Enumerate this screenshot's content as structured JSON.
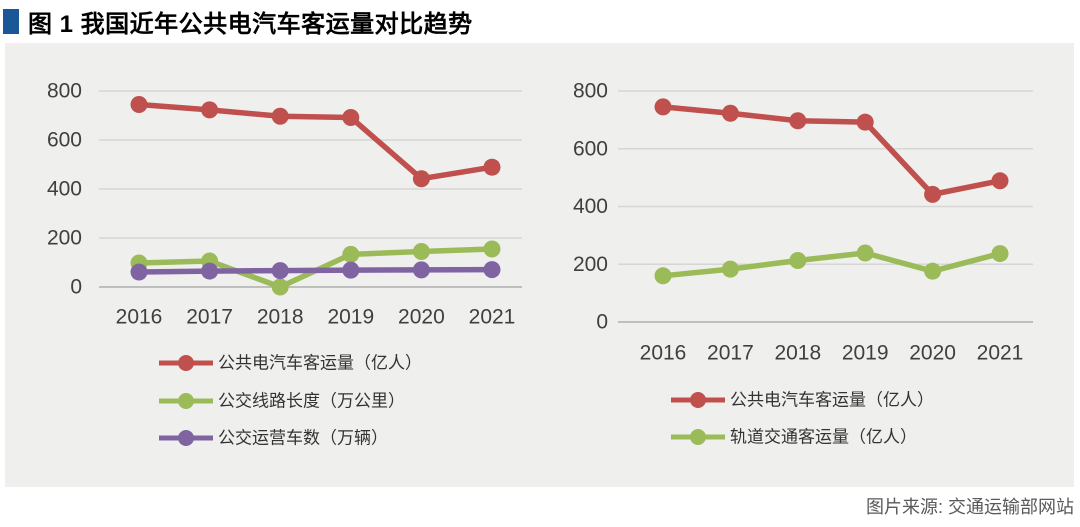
{
  "header": {
    "title": "图 1 我国近年公共电汽车客运量对比趋势"
  },
  "footer": {
    "source": "图片来源: 交通运输部网站"
  },
  "colors": {
    "accent_blue": "#1A5796",
    "panel_bg": "#EFEFEE",
    "gridline": "#D6D6D6",
    "axis_line": "#BFBFBF",
    "tick_text": "#3F3F3F",
    "legend_text": "#333333",
    "series_red": "#C0504D",
    "series_green": "#9BBB59",
    "series_purple": "#8064A2"
  },
  "chart_data": [
    {
      "type": "line",
      "title": "",
      "categories": [
        "2016",
        "2017",
        "2018",
        "2019",
        "2020",
        "2021"
      ],
      "series": [
        {
          "name": "公共电汽车客运量（亿人）",
          "color": "#C0504D",
          "values": [
            745,
            723,
            697,
            692,
            442,
            489
          ]
        },
        {
          "name": "公交线路长度（万公里）",
          "color": "#9BBB59",
          "values": [
            98,
            106,
            0,
            133,
            145,
            155
          ]
        },
        {
          "name": "公交运营车数（万辆）",
          "color": "#8064A2",
          "values": [
            61,
            65,
            67,
            69,
            70,
            71
          ]
        }
      ],
      "ylim": [
        0,
        800
      ],
      "yticks": [
        0,
        200,
        400,
        600,
        800
      ],
      "grid": true,
      "legend_position": "bottom"
    },
    {
      "type": "line",
      "title": "",
      "categories": [
        "2016",
        "2017",
        "2018",
        "2019",
        "2020",
        "2021"
      ],
      "series": [
        {
          "name": "公共电汽车客运量（亿人）",
          "color": "#C0504D",
          "values": [
            745,
            723,
            697,
            692,
            442,
            489
          ]
        },
        {
          "name": "轨道交通客运量（亿人）",
          "color": "#9BBB59",
          "values": [
            160,
            183,
            213,
            239,
            176,
            237
          ]
        }
      ],
      "ylim": [
        0,
        800
      ],
      "yticks": [
        0,
        200,
        400,
        600,
        800
      ],
      "grid": true,
      "legend_position": "bottom"
    }
  ]
}
